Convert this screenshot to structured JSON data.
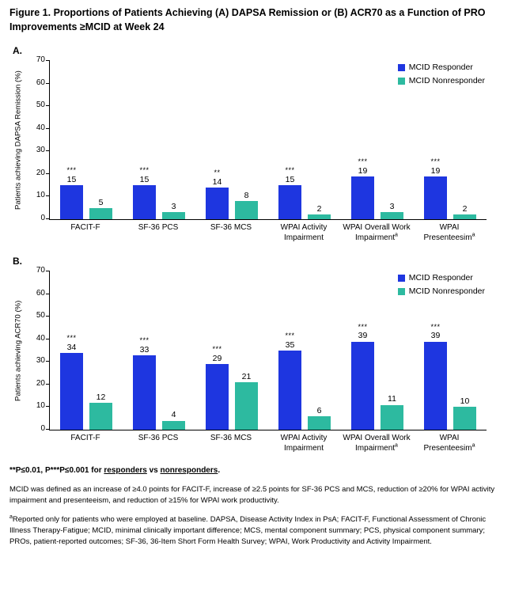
{
  "figure": {
    "title": "Figure 1. Proportions of Patients Achieving (A) DAPSA Remission or (B) ACR70 as a Function of PRO Improvements ≥MCID at Week 24"
  },
  "colors": {
    "responder": "#1e36e0",
    "nonresponder": "#2dbaa0"
  },
  "chart_data": [
    {
      "type": "bar",
      "panel_label": "A.",
      "ylabel": "Patients achieving DAPSA Remission (%)",
      "xlabel": "",
      "ylim": [
        0,
        70
      ],
      "yticks": [
        0,
        10,
        20,
        30,
        40,
        50,
        60,
        70
      ],
      "grid": false,
      "legend_position": "top-right",
      "categories": [
        "FACIT-F",
        "SF-36 PCS",
        "SF-36 MCS",
        "WPAI Activity Impairment",
        "WPAI Overall Work Impairment",
        "WPAI Presenteesim"
      ],
      "category_lines": [
        [
          "FACIT-F"
        ],
        [
          "SF-36 PCS"
        ],
        [
          "SF-36 MCS"
        ],
        [
          "WPAI Activity",
          "Impairment"
        ],
        [
          "WPAI Overall Work",
          "Impairment"
        ],
        [
          "WPAI Presenteesim"
        ]
      ],
      "category_superscript": [
        null,
        null,
        null,
        null,
        "a",
        "a"
      ],
      "series": [
        {
          "name": "MCID Responder",
          "color_key": "responder",
          "values": [
            15,
            15,
            14,
            15,
            19,
            19
          ]
        },
        {
          "name": "MCID Nonresponder",
          "color_key": "nonresponder",
          "values": [
            5,
            3,
            8,
            2,
            3,
            2
          ]
        }
      ],
      "significance": [
        "***",
        "***",
        "**",
        "***",
        "***",
        "***"
      ]
    },
    {
      "type": "bar",
      "panel_label": "B.",
      "ylabel": "Patients achieving ACR70 (%)",
      "xlabel": "",
      "ylim": [
        0,
        70
      ],
      "yticks": [
        0,
        10,
        20,
        30,
        40,
        50,
        60,
        70
      ],
      "grid": false,
      "legend_position": "top-right",
      "categories": [
        "FACIT-F",
        "SF-36 PCS",
        "SF-36 MCS",
        "WPAI Activity Impairment",
        "WPAI Overall Work Impairment",
        "WPAI Presenteesim"
      ],
      "category_lines": [
        [
          "FACIT-F"
        ],
        [
          "SF-36 PCS"
        ],
        [
          "SF-36 MCS"
        ],
        [
          "WPAI Activity",
          "Impairment"
        ],
        [
          "WPAI Overall Work",
          "Impairment"
        ],
        [
          "WPAI Presenteesim"
        ]
      ],
      "category_superscript": [
        null,
        null,
        null,
        null,
        "a",
        "a"
      ],
      "series": [
        {
          "name": "MCID Responder",
          "color_key": "responder",
          "values": [
            34,
            33,
            29,
            35,
            39,
            39
          ]
        },
        {
          "name": "MCID Nonresponder",
          "color_key": "nonresponder",
          "values": [
            12,
            4,
            21,
            6,
            11,
            10
          ]
        }
      ],
      "significance": [
        "***",
        "***",
        "***",
        "***",
        "***",
        "***"
      ]
    }
  ],
  "footnotes": {
    "pvalue_prefix": "**P≤0.01, P***P≤0.001 for ",
    "pvalue_word1": "responders",
    "pvalue_mid": " vs ",
    "pvalue_word2": "nonresponders",
    "pvalue_suffix": ".",
    "mcid_definition": "MCID was defined as an increase of ≥4.0 points for FACIT-F, increase of ≥2.5 points for SF-36 PCS and MCS, reduction of ≥20% for WPAI activity impairment and presenteeism, and reduction of ≥15% for WPAI work productivity.",
    "abbrev_sup": "a",
    "abbrev_text": "Reported only for patients who were employed at baseline. DAPSA, Disease Activity Index in PsA; FACIT-F, Functional Assessment of Chronic Illness Therapy-Fatigue; MCID, minimal clinically important difference; MCS, mental component summary; PCS, physical component summary; PROs, patient-reported outcomes; SF-36, 36-Item Short Form Health Survey; WPAI, Work Productivity and Activity Impairment."
  }
}
